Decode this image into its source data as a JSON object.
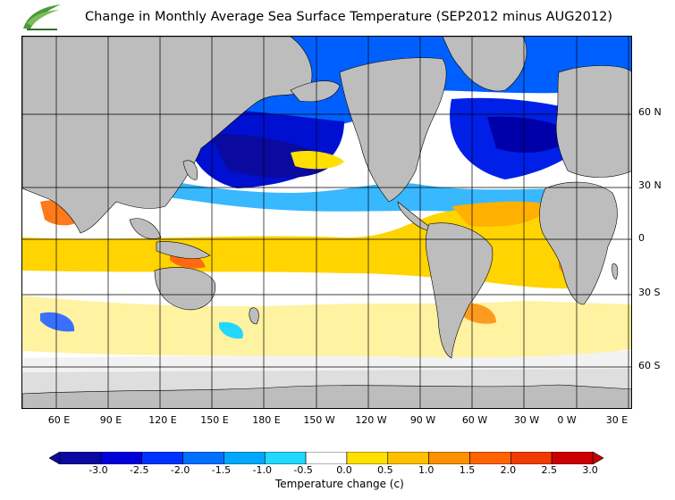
{
  "title": "Change in Monthly Average Sea Surface Temperature (SEP2012 minus AUG2012)",
  "map": {
    "lat_labels": [
      "60 N",
      "30 N",
      "0",
      "30 S",
      "60 S"
    ],
    "lon_labels": [
      "60 E",
      "90 E",
      "120 E",
      "150 E",
      "180 E",
      "150 W",
      "120 W",
      "90 W",
      "60 W",
      "30 W",
      "0 W",
      "30 E"
    ],
    "land_color": "#bdbdbd",
    "ice_color": "#dedede"
  },
  "legend": {
    "tick_labels": [
      "-3.0",
      "-2.5",
      "-2.0",
      "-1.5",
      "-1.0",
      "-0.5",
      "0.0",
      "0.5",
      "1.0",
      "1.5",
      "2.0",
      "2.5",
      "3.0"
    ],
    "colors": [
      "#0a0aa0",
      "#0000d8",
      "#0032ff",
      "#0070ff",
      "#00a8ff",
      "#22d8ff",
      "#ffffff",
      "#ffe000",
      "#ffc000",
      "#ff9000",
      "#ff6400",
      "#f03c00",
      "#cc0000"
    ],
    "label": "Temperature change  (c)"
  }
}
